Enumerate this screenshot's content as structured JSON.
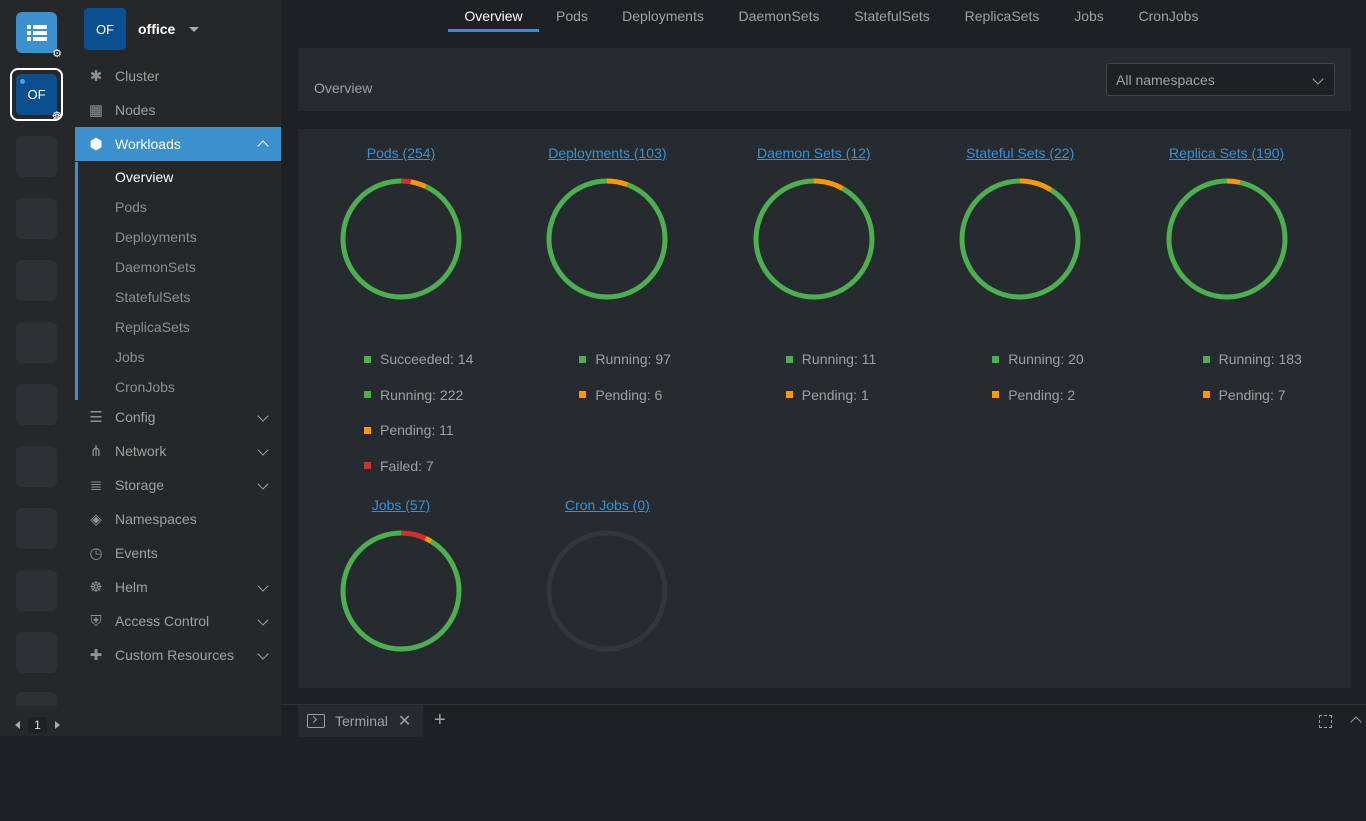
{
  "rail": {
    "cluster_label": "OF",
    "pager_value": "1",
    "icons": [
      "catalog-icon",
      "gear-icon",
      "helm-wheel-icon"
    ]
  },
  "sidebar": {
    "avatar": "OF",
    "title": "office",
    "items": [
      {
        "label": "Cluster",
        "icon": "cluster-icon"
      },
      {
        "label": "Nodes",
        "icon": "nodes-icon"
      },
      {
        "label": "Workloads",
        "icon": "workloads-icon"
      },
      {
        "label": "Config",
        "icon": "config-icon"
      },
      {
        "label": "Network",
        "icon": "network-icon"
      },
      {
        "label": "Storage",
        "icon": "storage-icon"
      },
      {
        "label": "Namespaces",
        "icon": "namespaces-icon"
      },
      {
        "label": "Events",
        "icon": "events-icon"
      },
      {
        "label": "Helm",
        "icon": "helm-icon"
      },
      {
        "label": "Access Control",
        "icon": "shield-icon"
      },
      {
        "label": "Custom Resources",
        "icon": "puzzle-icon"
      }
    ],
    "workloads_sub": [
      "Overview",
      "Pods",
      "Deployments",
      "DaemonSets",
      "StatefulSets",
      "ReplicaSets",
      "Jobs",
      "CronJobs"
    ]
  },
  "tabs": [
    "Overview",
    "Pods",
    "Deployments",
    "DaemonSets",
    "StatefulSets",
    "ReplicaSets",
    "Jobs",
    "CronJobs"
  ],
  "header": {
    "title": "Overview",
    "namespace_select": "All namespaces"
  },
  "colors": {
    "succeeded": "#4caf50",
    "running": "#4caf50",
    "pending": "#ff9800",
    "failed": "#d32f2f",
    "empty": "#33373b",
    "accent": "#3d90ce"
  },
  "cards": [
    {
      "title": "Pods (254)",
      "segments": [
        {
          "label": "Succeeded: 14",
          "value": 14,
          "status": "succeeded"
        },
        {
          "label": "Running: 222",
          "value": 222,
          "status": "running"
        },
        {
          "label": "Pending: 11",
          "value": 11,
          "status": "pending"
        },
        {
          "label": "Failed: 7",
          "value": 7,
          "status": "failed"
        }
      ]
    },
    {
      "title": "Deployments (103)",
      "segments": [
        {
          "label": "Running: 97",
          "value": 97,
          "status": "running"
        },
        {
          "label": "Pending: 6",
          "value": 6,
          "status": "pending"
        }
      ]
    },
    {
      "title": "Daemon Sets (12)",
      "segments": [
        {
          "label": "Running: 11",
          "value": 11,
          "status": "running"
        },
        {
          "label": "Pending: 1",
          "value": 1,
          "status": "pending"
        }
      ]
    },
    {
      "title": "Stateful Sets (22)",
      "segments": [
        {
          "label": "Running: 20",
          "value": 20,
          "status": "running"
        },
        {
          "label": "Pending: 2",
          "value": 2,
          "status": "pending"
        }
      ]
    },
    {
      "title": "Replica Sets (190)",
      "segments": [
        {
          "label": "Running: 183",
          "value": 183,
          "status": "running"
        },
        {
          "label": "Pending: 7",
          "value": 7,
          "status": "pending"
        }
      ]
    },
    {
      "title": "Jobs (57)",
      "segments": [
        {
          "value": 52,
          "status": "succeeded"
        },
        {
          "value": 1,
          "status": "pending"
        },
        {
          "value": 4,
          "status": "failed"
        }
      ]
    },
    {
      "title": "Cron Jobs (0)",
      "segments": []
    }
  ],
  "dock": {
    "tab_label": "Terminal"
  }
}
